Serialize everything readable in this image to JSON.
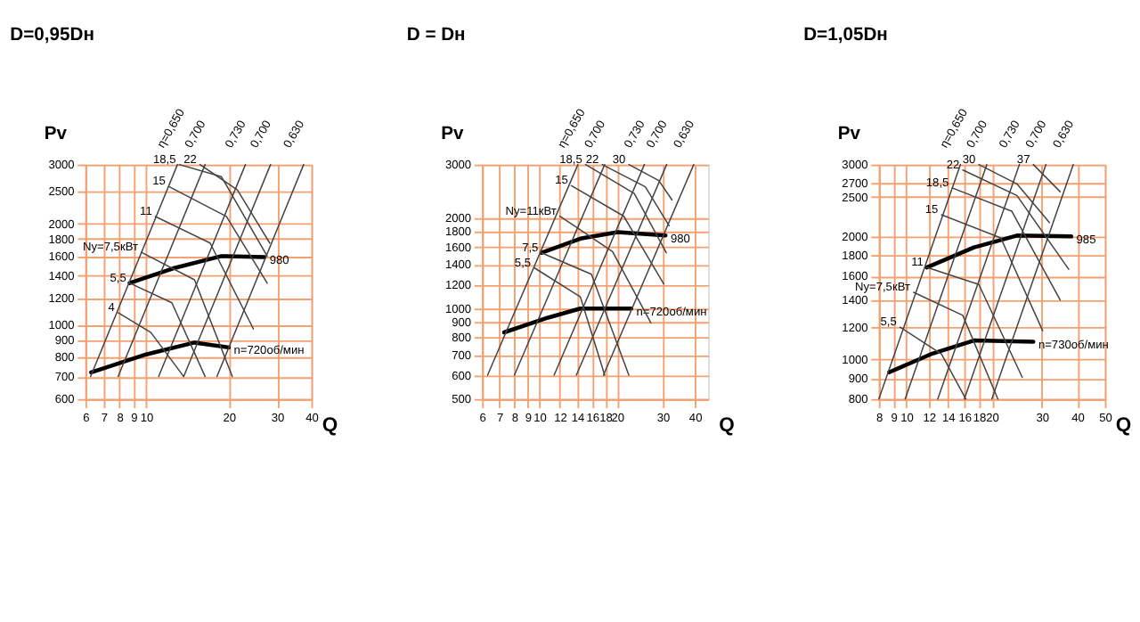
{
  "chart_data": [
    {
      "type": "line",
      "title": "D=0,95Dн",
      "xlabel": "Q",
      "ylabel": "Pv",
      "log": "xy",
      "grid": true,
      "xlim": [
        6,
        40
      ],
      "xticks": [
        6,
        7,
        8,
        9,
        10,
        20,
        30,
        40
      ],
      "ylim": [
        600,
        3000
      ],
      "yticks": [
        600,
        700,
        800,
        900,
        1000,
        1200,
        1400,
        1600,
        1800,
        2000,
        2500,
        3000
      ],
      "series": [
        {
          "name": "980",
          "color": "#000000",
          "x": [
            8.7,
            12.5,
            18.8,
            27
          ],
          "values": [
            1330,
            1470,
            1600,
            1590
          ]
        },
        {
          "name": "n=720об/мин",
          "color": "#000000",
          "x": [
            6.3,
            10,
            15,
            20
          ],
          "values": [
            720,
            815,
            884,
            855
          ]
        },
        {
          "name": "η=0,650",
          "color": "#444444",
          "x": [
            6.27,
            13.0
          ],
          "values": [
            700,
            3000
          ]
        },
        {
          "name": "0,700",
          "color": "#444444",
          "x": [
            7.9,
            16.4
          ],
          "values": [
            700,
            3000
          ]
        },
        {
          "name": "0,730",
          "color": "#444444",
          "x": [
            11.1,
            23
          ],
          "values": [
            700,
            3000
          ]
        },
        {
          "name": "0,700",
          "color": "#444444",
          "x": [
            13.7,
            28.4
          ],
          "values": [
            700,
            3000
          ]
        },
        {
          "name": "0,630",
          "color": "#444444",
          "x": [
            18.1,
            37.5
          ],
          "values": [
            700,
            3000
          ]
        },
        {
          "name": "4",
          "color": "#444444",
          "x": [
            7.9,
            10.4,
            13.7
          ],
          "values": [
            1085,
            947,
            700
          ]
        },
        {
          "name": "5,5",
          "color": "#444444",
          "x": [
            8.7,
            12.4,
            16.4
          ],
          "values": [
            1330,
            1162,
            700
          ]
        },
        {
          "name": "Ny=7,5кВт",
          "color": "#444444",
          "x": [
            9.6,
            15,
            20.6
          ],
          "values": [
            1642,
            1360,
            700
          ]
        },
        {
          "name": "11",
          "color": "#444444",
          "x": [
            10.8,
            17.1,
            24.6
          ],
          "values": [
            2100,
            1750,
            970
          ]
        },
        {
          "name": "15",
          "color": "#444444",
          "x": [
            12.1,
            19.6,
            27.6
          ],
          "values": [
            2580,
            2100,
            1330
          ]
        },
        {
          "name": "18,5",
          "color": "#444444",
          "x": [
            13.2,
            18.8,
            27.6
          ],
          "values": [
            3000,
            2760,
            1600
          ]
        },
        {
          "name": "22",
          "color": "#444444",
          "x": [
            15.7,
            21.5,
            28.2
          ],
          "values": [
            3000,
            2520,
            1750
          ]
        }
      ]
    },
    {
      "type": "line",
      "title": "D = Dн",
      "xlabel": "Q",
      "ylabel": "Pv",
      "log": "xy",
      "grid": true,
      "xlim": [
        6,
        45
      ],
      "xticks": [
        6,
        7,
        8,
        9,
        10,
        12,
        14,
        16,
        18,
        20,
        30,
        40
      ],
      "ylim": [
        500,
        3000
      ],
      "yticks": [
        500,
        600,
        700,
        800,
        900,
        1000,
        1200,
        1400,
        1600,
        1800,
        2000,
        3000
      ],
      "series": [
        {
          "name": "980",
          "color": "#000000",
          "x": [
            10.2,
            14.4,
            20.1,
            30.8
          ],
          "values": [
            1528,
            1703,
            1790,
            1746
          ]
        },
        {
          "name": "n=720об/мин",
          "color": "#000000",
          "x": [
            7.3,
            10.8,
            14.4,
            22.7
          ],
          "values": [
            832,
            931,
            998,
            998
          ]
        },
        {
          "name": "η=0,650",
          "color": "#444444",
          "x": [
            6.3,
            14.1
          ],
          "values": [
            600,
            3000
          ]
        },
        {
          "name": "0,700",
          "color": "#444444",
          "x": [
            8.0,
            17.9
          ],
          "values": [
            600,
            3000
          ]
        },
        {
          "name": "0,730",
          "color": "#444444",
          "x": [
            11.4,
            25.5
          ],
          "values": [
            600,
            3000
          ]
        },
        {
          "name": "0,700",
          "color": "#444444",
          "x": [
            13.9,
            31.1
          ],
          "values": [
            600,
            3000
          ]
        },
        {
          "name": "0,630",
          "color": "#444444",
          "x": [
            17.7,
            39.6
          ],
          "values": [
            600,
            3000
          ]
        },
        {
          "name": "5,5",
          "color": "#444444",
          "x": [
            9.55,
            14.4,
            17.9
          ],
          "values": [
            1363,
            1092,
            600
          ]
        },
        {
          "name": "7,5",
          "color": "#444444",
          "x": [
            10.2,
            15.9,
            22.2
          ],
          "values": [
            1528,
            1297,
            600
          ]
        },
        {
          "name": "Ny=11кВт",
          "color": "#444444",
          "x": [
            12,
            19.2,
            27
          ],
          "values": [
            2023,
            1543,
            896
          ]
        },
        {
          "name": "15",
          "color": "#444444",
          "x": [
            13.3,
            21.2,
            30.3
          ],
          "values": [
            2553,
            2023,
            1204
          ]
        },
        {
          "name": "18,5",
          "color": "#444444",
          "x": [
            15.1,
            23.3,
            31
          ],
          "values": [
            3000,
            2404,
            1528
          ]
        },
        {
          "name": "22",
          "color": "#444444",
          "x": [
            17.5,
            25.7,
            31.8
          ],
          "values": [
            3000,
            2530,
            1880
          ]
        },
        {
          "name": "30",
          "color": "#444444",
          "x": [
            22.2,
            29,
            32.6
          ],
          "values": [
            3000,
            2655,
            2290
          ]
        }
      ]
    },
    {
      "type": "line",
      "title": "D=1,05Dн",
      "xlabel": "Q",
      "ylabel": "Pv",
      "log": "xy",
      "grid": true,
      "xlim": [
        8,
        50
      ],
      "xticks": [
        8,
        9,
        10,
        12,
        14,
        16,
        18,
        20,
        30,
        40,
        50
      ],
      "ylim": [
        800,
        3000
      ],
      "yticks": [
        800,
        900,
        1000,
        1200,
        1400,
        1600,
        1800,
        2000,
        2500,
        2700,
        3000
      ],
      "series": [
        {
          "name": "985",
          "color": "#000000",
          "x": [
            11.8,
            17.3,
            24.5,
            38.1
          ],
          "values": [
            1680,
            1880,
            2010,
            2000
          ]
        },
        {
          "name": "n=730об/мин",
          "color": "#000000",
          "x": [
            8.7,
            12.2,
            17.3,
            28
          ],
          "values": [
            930,
            1030,
            1113,
            1105
          ]
        },
        {
          "name": "η=0,650",
          "color": "#444444",
          "x": [
            8.0,
            15.5
          ],
          "values": [
            800,
            3000
          ]
        },
        {
          "name": "0,700",
          "color": "#444444",
          "x": [
            9.9,
            19.2
          ],
          "values": [
            800,
            3000
          ]
        },
        {
          "name": "0,730",
          "color": "#444444",
          "x": [
            12.9,
            25
          ],
          "values": [
            800,
            3000
          ]
        },
        {
          "name": "0,700",
          "color": "#444444",
          "x": [
            16,
            31
          ],
          "values": [
            800,
            3000
          ]
        },
        {
          "name": "0,630",
          "color": "#444444",
          "x": [
            20,
            38.7
          ],
          "values": [
            800,
            3000
          ]
        },
        {
          "name": "5,5",
          "color": "#444444",
          "x": [
            9.5,
            13.3,
            16.2
          ],
          "values": [
            1200,
            1030,
            800
          ]
        },
        {
          "name": "Ny=7,5кВт",
          "color": "#444444",
          "x": [
            10.6,
            15.8,
            21
          ],
          "values": [
            1460,
            1282,
            800
          ]
        },
        {
          "name": "11",
          "color": "#444444",
          "x": [
            11.8,
            18,
            25.6
          ],
          "values": [
            1680,
            1526,
            904
          ]
        },
        {
          "name": "15",
          "color": "#444444",
          "x": [
            13.3,
            21.5,
            30.2
          ],
          "values": [
            2260,
            1984,
            1176
          ]
        },
        {
          "name": "18,5",
          "color": "#444444",
          "x": [
            14.5,
            23.5,
            34.8
          ],
          "values": [
            2630,
            2307,
            1398
          ]
        },
        {
          "name": "22",
          "color": "#444444",
          "x": [
            15.8,
            24.5,
            37.3
          ],
          "values": [
            2910,
            2520,
            1663
          ]
        },
        {
          "name": "30",
          "color": "#444444",
          "x": [
            18,
            24.5,
            31.9
          ],
          "values": [
            3000,
            2690,
            2163
          ]
        },
        {
          "name": "37",
          "color": "#444444",
          "x": [
            28,
            34.8
          ],
          "values": [
            3000,
            2574
          ]
        }
      ]
    }
  ]
}
